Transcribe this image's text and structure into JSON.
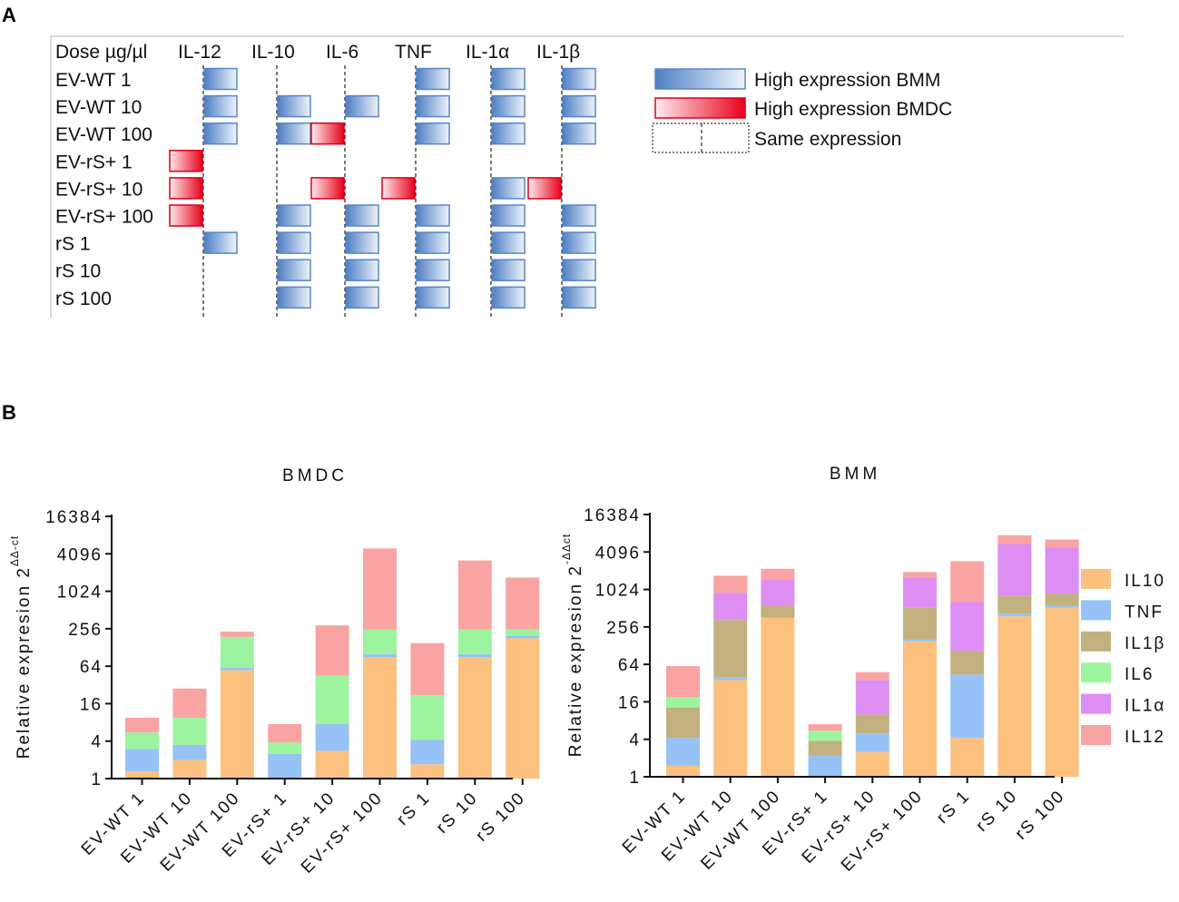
{
  "panel_a": {
    "letter": "A",
    "header_label": "Dose µg/µl",
    "columns": [
      "IL-12",
      "IL-10",
      "IL-6",
      "TNF",
      "IL-1α",
      "IL-1β"
    ],
    "rows": [
      {
        "label": "EV-WT 1",
        "cells": [
          "BMM",
          "",
          "",
          "BMM",
          "BMM",
          "BMM"
        ]
      },
      {
        "label": "EV-WT 10",
        "cells": [
          "BMM",
          "BMM",
          "BMM",
          "BMM",
          "BMM",
          "BMM"
        ]
      },
      {
        "label": "EV-WT 100",
        "cells": [
          "BMM",
          "BMM",
          "BMDC",
          "BMM",
          "BMM",
          "BMM"
        ]
      },
      {
        "label": "EV-rS+ 1",
        "cells": [
          "BMDC",
          "",
          "",
          "",
          "",
          ""
        ]
      },
      {
        "label": "EV-rS+ 10",
        "cells": [
          "BMDC",
          "",
          "BMDC",
          "BMDC",
          "BMM",
          "BMDC"
        ]
      },
      {
        "label": "EV-rS+ 100",
        "cells": [
          "BMDC",
          "BMM",
          "BMM",
          "BMM",
          "BMM",
          "BMM"
        ]
      },
      {
        "label": "rS 1",
        "cells": [
          "BMM",
          "BMM",
          "BMM",
          "BMM",
          "BMM",
          "BMM"
        ]
      },
      {
        "label": "rS 10",
        "cells": [
          "",
          "BMM",
          "BMM",
          "BMM",
          "BMM",
          "BMM"
        ]
      },
      {
        "label": "rS 100",
        "cells": [
          "",
          "BMM",
          "BMM",
          "BMM",
          "BMM",
          "BMM"
        ]
      }
    ],
    "legend": [
      {
        "key": "BMM",
        "label": "High expression BMM"
      },
      {
        "key": "BMDC",
        "label": "High expression BMDC"
      },
      {
        "key": "same",
        "label": "Same expression"
      }
    ],
    "colors": {
      "bmm_dark": "#4d7fc4",
      "bmm_light": "#eaf1fb",
      "bmm_stroke": "#5a86c5",
      "bmdc_dark": "#e8001a",
      "bmdc_light": "#ffe8ea",
      "bmdc_stroke": "#d8001a"
    }
  },
  "panel_b": {
    "letter": "B",
    "series_colors": {
      "IL10": "#fcc17f",
      "TNF": "#96c2f6",
      "IL1b": "#c2b17e",
      "IL6": "#9cf59e",
      "IL1a": "#dd8ef2",
      "IL12": "#faa3a3"
    },
    "legend": [
      {
        "key": "IL10",
        "label": "IL10"
      },
      {
        "key": "TNF",
        "label": "TNF"
      },
      {
        "key": "IL1b",
        "label": "IL1β"
      },
      {
        "key": "IL6",
        "label": "IL6"
      },
      {
        "key": "IL1a",
        "label": "IL1α"
      },
      {
        "key": "IL12",
        "label": "IL12"
      }
    ]
  },
  "chart_data": [
    {
      "type": "bar",
      "stacked": true,
      "title": "BMDC",
      "ylabel": "Relative expresion 2",
      "ylabel_sup": "ΔΔ-ct",
      "yscale": "log2",
      "ylim": [
        1,
        16384
      ],
      "yticks": [
        "1",
        "4",
        "16",
        "64",
        "256",
        "1024",
        "4096",
        "16384"
      ],
      "categories": [
        "EV-WT 1",
        "EV-WT 10",
        "EV-WT 100",
        "EV-rS+ 1",
        "EV-rS+ 10",
        "EV-rS+ 100",
        "rS 1",
        "rS 10",
        "rS 100"
      ],
      "series": [
        {
          "name": "IL10",
          "cumulative": [
            1.3,
            2.0,
            55,
            0,
            2.8,
            90,
            1.7,
            90,
            180
          ]
        },
        {
          "name": "TNF",
          "cumulative": [
            3.0,
            3.5,
            60,
            2.5,
            7.5,
            100,
            4.2,
            100,
            195
          ]
        },
        {
          "name": "IL1b",
          "cumulative": [
            3.0,
            3.5,
            60,
            2.5,
            7.5,
            100,
            4.2,
            100,
            195
          ]
        },
        {
          "name": "IL6",
          "cumulative": [
            5.5,
            9.5,
            190,
            3.8,
            45,
            250,
            22,
            250,
            250
          ]
        },
        {
          "name": "IL1a",
          "cumulative": [
            4.0,
            7.0,
            110,
            3.0,
            20,
            180,
            12,
            160,
            205
          ]
        },
        {
          "name": "IL12",
          "cumulative": [
            9.5,
            28,
            230,
            7.5,
            290,
            5000,
            150,
            3200,
            1700
          ]
        }
      ]
    },
    {
      "type": "bar",
      "stacked": true,
      "title": "BMM",
      "ylabel": "Relative expresion 2",
      "ylabel_sup": "-ΔΔct",
      "yscale": "log2",
      "ylim": [
        1,
        16384
      ],
      "yticks": [
        "1",
        "4",
        "16",
        "64",
        "256",
        "1024",
        "4096",
        "16384"
      ],
      "categories": [
        "EV-WT 1",
        "EV-WT 10",
        "EV-WT 100",
        "EV-rS+ 1",
        "EV-rS+ 10",
        "EV-rS+ 100",
        "rS 1",
        "rS 10",
        "rS 100"
      ],
      "series": [
        {
          "name": "IL10",
          "cumulative": [
            1.5,
            36,
            360,
            0,
            2.5,
            150,
            4.2,
            380,
            520
          ]
        },
        {
          "name": "TNF",
          "cumulative": [
            4.2,
            40,
            360,
            2.2,
            5.0,
            160,
            44,
            420,
            560
          ]
        },
        {
          "name": "IL1b",
          "cumulative": [
            13,
            330,
            560,
            3.8,
            10,
            520,
            105,
            820,
            880
          ]
        },
        {
          "name": "IL6",
          "cumulative": [
            19,
            330,
            560,
            5.5,
            10,
            520,
            105,
            820,
            880
          ]
        },
        {
          "name": "IL1a",
          "cumulative": [
            18,
            900,
            1500,
            5.0,
            36,
            1600,
            650,
            5500,
            4800
          ]
        },
        {
          "name": "IL12",
          "cumulative": [
            60,
            1700,
            2200,
            7.0,
            48,
            1950,
            2900,
            7600,
            6500
          ]
        }
      ]
    }
  ]
}
